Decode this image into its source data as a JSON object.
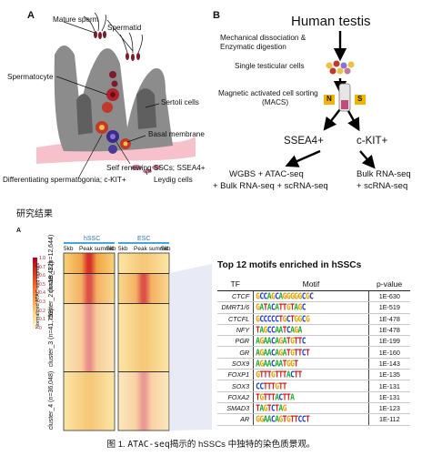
{
  "panel_a": {
    "letter": "A",
    "labels": {
      "mature_sperm": "Mature sperm",
      "spermatid": "Spermatid",
      "spermatocyte": "Spermatocyte",
      "sertoli": "Sertoli cells",
      "basal": "Basal membrane",
      "ssc": "Self renewing SSCs; SSEA4+",
      "diff": "Differentiating spermatogonia; c-KIT+",
      "leydig": "Leydig cells"
    }
  },
  "panel_b": {
    "letter": "B",
    "title": "Human testis",
    "step1_line1": "Mechanical dissociation &",
    "step1_line2": "Enzymatic digestion",
    "step2": "Single testicular cells",
    "step3_line1": "Magnetic activated cell sorting",
    "step3_line2": "(MACS)",
    "magnet_n": "N",
    "magnet_s": "S",
    "pop_left": "SSEA4+",
    "pop_right": "c-KIT+",
    "left_assay_line1": "WGBS + ATAC-seq",
    "left_assay_line2": "+ Bulk RNA-seq + scRNA-seq",
    "right_assay_line1": "Bulk RNA-seq",
    "right_assay_line2": "+ scRNA-seq"
  },
  "section_heading": "研究结果",
  "heatmap": {
    "letter": "A",
    "col_hssc": "hSSC",
    "col_esc": "ESC",
    "tick_left": "5kb",
    "tick_mid": "Peak summit",
    "tick_right": "5kb",
    "colorbar_label": "Normalized ATAC-seq signals",
    "colorbar_ticks": [
      "1.0",
      "0.7",
      "0.6",
      "0.5",
      "0.4",
      "0.3",
      "0.2",
      "0.1",
      "0"
    ],
    "clusters": [
      {
        "name": "cluster_1",
        "n": "(n=12,644)"
      },
      {
        "name": "cluster_2",
        "n": "(n=18,432)"
      },
      {
        "name": "cluster_3",
        "n": "(n=41,759)"
      },
      {
        "name": "cluster_4",
        "n": "(n=36,048)"
      }
    ]
  },
  "motifs": {
    "title": "Top 12 motifs enriched in hSSCs",
    "headers": {
      "tf": "TF",
      "motif": "Motif",
      "pvalue": "p-value"
    },
    "rows": [
      {
        "tf": "CTCF",
        "logo": "GCCAGCAGGGGGCGC",
        "p": "1E-630"
      },
      {
        "tf": "DMRT1/6",
        "logo": "GATACATTGTAGC",
        "p": "1E-519"
      },
      {
        "tf": "CTCFL",
        "logo": "GCCCCCTGCTGGCG",
        "p": "1E-478"
      },
      {
        "tf": "NFY",
        "logo": "TAGCCAATCAGA",
        "p": "1E-478"
      },
      {
        "tf": "PGR",
        "logo": "AGAACAGATGTTC",
        "p": "1E-199"
      },
      {
        "tf": "GR",
        "logo": "AGAACAGATGTTCT",
        "p": "1E-160"
      },
      {
        "tf": "SOX9",
        "logo": "AGAACAATGGT",
        "p": "1E-143"
      },
      {
        "tf": "FOXP1",
        "logo": "GTTTGTTTACTT",
        "p": "1E-135"
      },
      {
        "tf": "SOX3",
        "logo": "CCTTTGTT",
        "p": "1E-131"
      },
      {
        "tf": "FOXA2",
        "logo": "TGTTTACTTA",
        "p": "1E-131"
      },
      {
        "tf": "SMAD3",
        "logo": "TAGTCTAG",
        "p": "1E-123"
      },
      {
        "tf": "AR",
        "logo": "GGAACAGTGTTCCT",
        "p": "1E-112"
      }
    ]
  },
  "caption": {
    "prefix": "图 1. ",
    "mono": "ATAC-seq",
    "text": "揭示的 hSSCs 中独特的染色质景观。"
  }
}
